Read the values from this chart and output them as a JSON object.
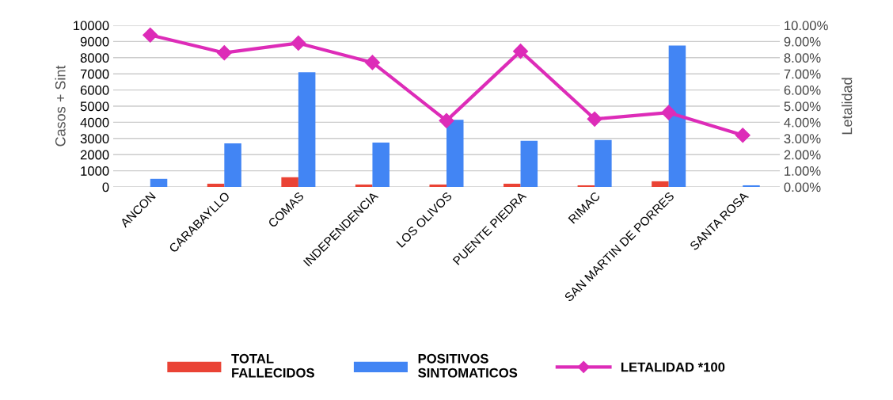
{
  "chart_data": {
    "type": "bar",
    "ylabel": "Casos + Sint",
    "y2label": "Letalidad",
    "categories": [
      "ANCON",
      "CARABAYLLO",
      "COMAS",
      "INDEPENDENCIA",
      "LOS OLIVOS",
      "PUENTE PIEDRA",
      "RIMAC",
      "SAN MARTIN DE PORRES",
      "SANTA ROSA"
    ],
    "series": [
      {
        "name": "TOTAL\nFALLECIDOS",
        "color": "#ea4335",
        "values": [
          0,
          200,
          600,
          150,
          150,
          200,
          100,
          350,
          0
        ]
      },
      {
        "name": "POSITIVOS\nSINTOMATICOS",
        "color": "#4285f4",
        "values": [
          500,
          2700,
          7100,
          2750,
          4150,
          2850,
          2900,
          8750,
          100
        ]
      },
      {
        "name": "LETALIDAD *100",
        "color": "#dd2cb8",
        "type": "line",
        "axis": "y2",
        "marker": "diamond",
        "values": [
          9.4,
          8.3,
          8.9,
          7.7,
          4.1,
          8.4,
          4.2,
          4.6,
          3.2
        ]
      }
    ],
    "ylim": [
      0,
      10000
    ],
    "yticks": [
      0,
      1000,
      2000,
      3000,
      4000,
      5000,
      6000,
      7000,
      8000,
      9000,
      10000
    ],
    "y2lim": [
      0,
      10
    ],
    "y2ticks": [
      {
        "value": 0,
        "label": "0.00%"
      },
      {
        "value": 1,
        "label": "1.00%"
      },
      {
        "value": 2,
        "label": "2.00%"
      },
      {
        "value": 3,
        "label": "3.00%"
      },
      {
        "value": 4,
        "label": "4.00%"
      },
      {
        "value": 5,
        "label": "5.00%"
      },
      {
        "value": 6,
        "label": "6.00%"
      },
      {
        "value": 7,
        "label": "7.00%"
      },
      {
        "value": 8,
        "label": "8.00%"
      },
      {
        "value": 9,
        "label": "9.00%"
      },
      {
        "value": 10,
        "label": "10.00%"
      }
    ],
    "grid": "y",
    "legend": "bottom"
  }
}
